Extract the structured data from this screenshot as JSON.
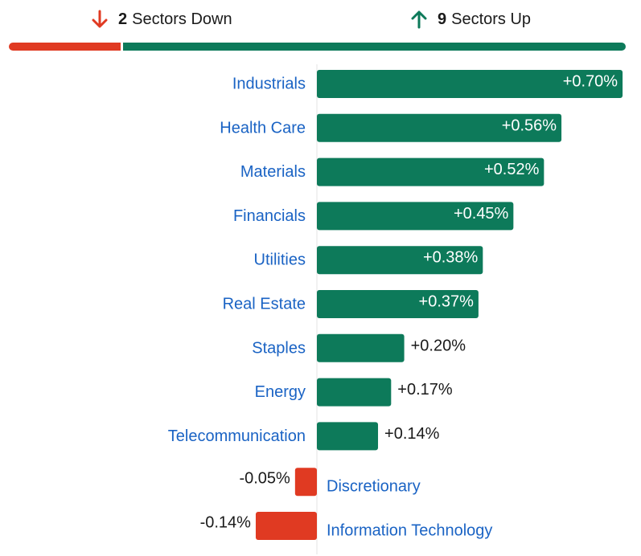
{
  "summary": {
    "down_count": "2",
    "down_label": "Sectors Down",
    "up_count": "9",
    "up_label": "Sectors Up",
    "down_icon": "arrow-down-icon",
    "up_icon": "arrow-up-icon"
  },
  "colors": {
    "positive": "#0d7a5a",
    "negative": "#e03a22",
    "category_label": "#1a63c4",
    "value_inside": "#ffffff",
    "value_outside": "#1a1a1a",
    "axis": "#e3e3e3"
  },
  "chart_data": {
    "type": "bar",
    "orientation": "horizontal",
    "categories": [
      "Industrials",
      "Health Care",
      "Materials",
      "Financials",
      "Utilities",
      "Real Estate",
      "Staples",
      "Energy",
      "Telecommunication",
      "Discretionary",
      "Information Technology"
    ],
    "values": [
      0.7,
      0.56,
      0.52,
      0.45,
      0.38,
      0.37,
      0.2,
      0.17,
      0.14,
      -0.05,
      -0.14
    ],
    "value_labels": [
      "+0.70%",
      "+0.56%",
      "+0.52%",
      "+0.45%",
      "+0.38%",
      "+0.37%",
      "+0.20%",
      "+0.17%",
      "+0.14%",
      "-0.05%",
      "-0.14%"
    ],
    "unit": "%"
  }
}
